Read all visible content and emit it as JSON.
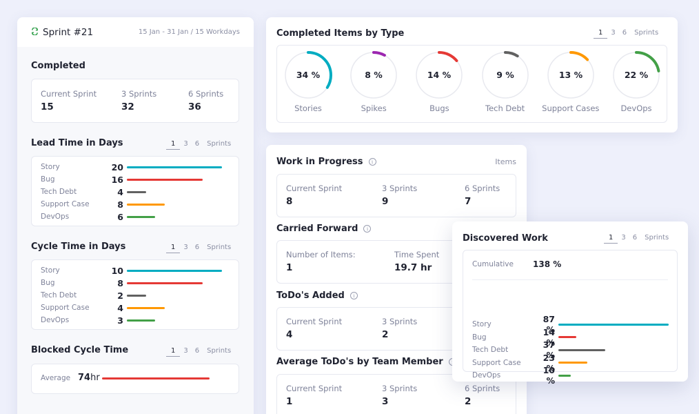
{
  "sprint": {
    "title": "Sprint #21",
    "range": "15 Jan - 31 Jan / 15 Workdays",
    "icon": "refresh-icon"
  },
  "sprint_selector": {
    "options": [
      "1",
      "3",
      "6"
    ],
    "selected": "1",
    "unit": "Sprints"
  },
  "completed": {
    "title": "Completed",
    "stats": [
      {
        "label": "Current Sprint",
        "value": "15"
      },
      {
        "label": "3 Sprints",
        "value": "32"
      },
      {
        "label": "6 Sprints",
        "value": "36"
      }
    ]
  },
  "lead_time": {
    "title": "Lead Time in Days",
    "max": 20,
    "rows": [
      {
        "label": "Story",
        "value": 20,
        "color": "#00acc1"
      },
      {
        "label": "Bug",
        "value": 16,
        "color": "#e53935"
      },
      {
        "label": "Tech Debt",
        "value": 4,
        "color": "#616161"
      },
      {
        "label": "Support Case",
        "value": 8,
        "color": "#ff9800"
      },
      {
        "label": "DevOps",
        "value": 6,
        "color": "#43a047"
      }
    ]
  },
  "cycle_time": {
    "title": "Cycle Time in Days",
    "max": 10,
    "rows": [
      {
        "label": "Story",
        "value": 10,
        "color": "#00acc1"
      },
      {
        "label": "Bug",
        "value": 8,
        "color": "#e53935"
      },
      {
        "label": "Tech Debt",
        "value": 2,
        "color": "#616161"
      },
      {
        "label": "Support Case",
        "value": 4,
        "color": "#ff9800"
      },
      {
        "label": "DevOps",
        "value": 3,
        "color": "#43a047"
      }
    ]
  },
  "blocked": {
    "title": "Blocked Cycle Time",
    "label": "Average",
    "value": "74",
    "unit": "hr",
    "color": "#e53935",
    "fraction": 1.0
  },
  "completed_by_type": {
    "title": "Completed Items by Type",
    "items": [
      {
        "label": "Stories",
        "percent": 34,
        "text": "34 %",
        "color": "#00acc1"
      },
      {
        "label": "Spikes",
        "percent": 8,
        "text": "8 %",
        "color": "#9c27b0"
      },
      {
        "label": "Bugs",
        "percent": 14,
        "text": "14 %",
        "color": "#e53935"
      },
      {
        "label": "Tech Debt",
        "percent": 9,
        "text": "9 %",
        "color": "#616161"
      },
      {
        "label": "Support Cases",
        "percent": 13,
        "text": "13 %",
        "color": "#ff9800"
      },
      {
        "label": "DevOps",
        "percent": 22,
        "text": "22 %",
        "color": "#43a047"
      }
    ]
  },
  "wip": {
    "title": "Work in Progress",
    "unit": "Items",
    "stats": [
      {
        "label": "Current Sprint",
        "value": "8"
      },
      {
        "label": "3 Sprints",
        "value": "9"
      },
      {
        "label": "6 Sprints",
        "value": "7"
      }
    ]
  },
  "carried_forward": {
    "title": "Carried Forward",
    "stats": [
      {
        "label": "Number of Items:",
        "value": "1"
      },
      {
        "label": "Time Spent",
        "value": "19.7 hr"
      }
    ]
  },
  "todos_added": {
    "title": "ToDo's Added",
    "stats": [
      {
        "label": "Current Sprint",
        "value": "4"
      },
      {
        "label": "3 Sprints",
        "value": "2"
      }
    ]
  },
  "avg_todos": {
    "title": "Average ToDo's by Team Member",
    "stats": [
      {
        "label": "Current Sprint",
        "value": "1"
      },
      {
        "label": "3 Sprints",
        "value": "3"
      },
      {
        "label": "6 Sprints",
        "value": "2"
      }
    ]
  },
  "discovered": {
    "title": "Discovered Work",
    "cumulative_label": "Cumulative",
    "cumulative_value": "138 %",
    "max": 87,
    "rows": [
      {
        "label": "Story",
        "value": 87,
        "text": "87 %",
        "color": "#00acc1"
      },
      {
        "label": "Bug",
        "value": 14,
        "text": "14 %",
        "color": "#e53935"
      },
      {
        "label": "Tech Debt",
        "value": 37,
        "text": "37 %",
        "color": "#616161"
      },
      {
        "label": "Support Case",
        "value": 23,
        "text": "23 %",
        "color": "#ff9800"
      },
      {
        "label": "DevOps",
        "value": 10,
        "text": "10 %",
        "color": "#43a047"
      }
    ]
  }
}
